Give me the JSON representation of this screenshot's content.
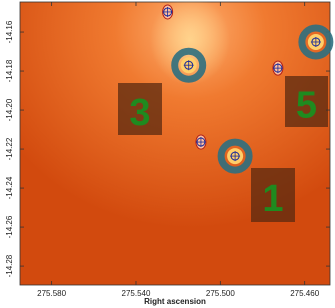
{
  "chart_data": {
    "type": "image",
    "xlabel": "Right ascension",
    "xlim": [
      275.595,
      275.448
    ],
    "ylim": [
      -14.2897,
      -14.1446
    ],
    "xticks": [
      {
        "value": 275.58,
        "label": "275.580"
      },
      {
        "value": 275.54,
        "label": "275.540"
      },
      {
        "value": 275.5,
        "label": "275.500"
      },
      {
        "value": 275.46,
        "label": "275.460"
      }
    ],
    "yticks": [
      -14.16,
      -14.18,
      {
        "value": -14.2,
        "label": "-14.20"
      },
      -14.22,
      -14.24,
      -14.26,
      -14.28
    ],
    "sources": [
      {
        "ra": 275.515,
        "dec": -14.177,
        "ring": true
      },
      {
        "ra": 275.493,
        "dec": -14.2236,
        "ring": true
      },
      {
        "ra": 275.4547,
        "dec": -14.1651,
        "ring": true
      },
      {
        "ra": 275.525,
        "dec": -14.1497,
        "ring": false
      },
      {
        "ra": 275.4727,
        "dec": -14.1785,
        "ring": false
      },
      {
        "ra": 275.5092,
        "dec": -14.2164,
        "ring": false
      }
    ],
    "annotations": [
      "3",
      "5",
      "1"
    ]
  }
}
